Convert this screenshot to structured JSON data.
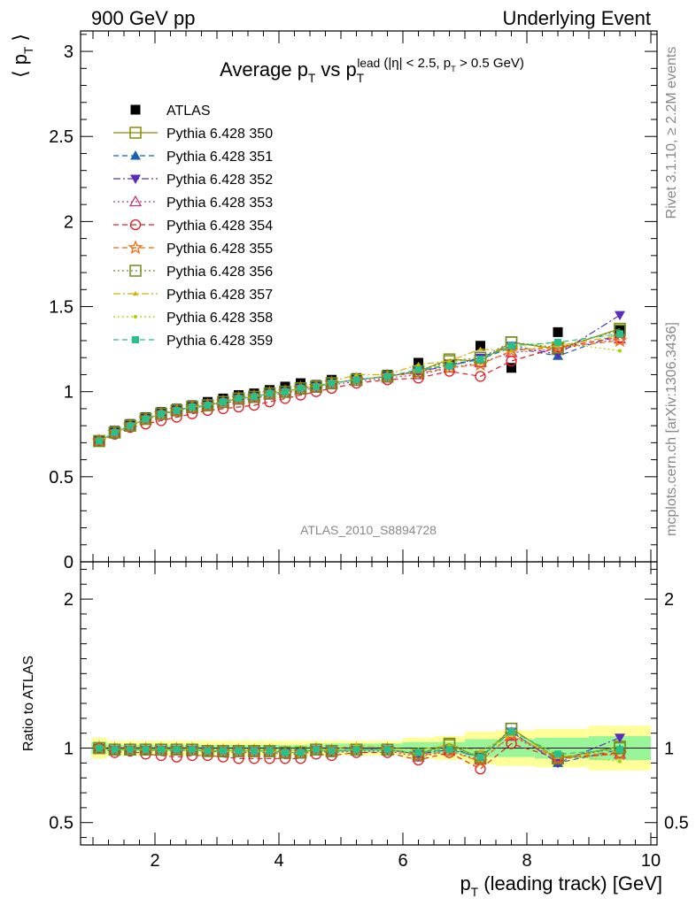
{
  "header": {
    "left": "900 GeV pp",
    "right": "Underlying Event"
  },
  "side_labels": {
    "rivet": "Rivet 3.1.10, ≥ 2.2M events",
    "mcplots": "mcplots.cern.ch [arXiv:1306.3436]"
  },
  "chart_data": [
    {
      "type": "scatter",
      "panel": "main",
      "title": "Average p_T vs p_T^lead (|η| < 2.5, p_T > 0.5 GeV)",
      "ylabel": "⟨ p_T ⟩",
      "xlabel": "",
      "watermark": "ATLAS_2010_S8894728",
      "xlim": [
        0.8,
        10.1
      ],
      "ylim": [
        0,
        3.12
      ],
      "yticks": [
        0,
        0.5,
        1,
        1.5,
        2,
        2.5,
        3
      ],
      "ytick_labels": [
        "0",
        "0.5",
        "1",
        "1.5",
        "2",
        "2.5",
        "3"
      ],
      "legend_position": "top-left",
      "x": [
        1.1,
        1.35,
        1.6,
        1.85,
        2.1,
        2.35,
        2.6,
        2.85,
        3.1,
        3.35,
        3.6,
        3.85,
        4.1,
        4.35,
        4.6,
        4.85,
        5.25,
        5.75,
        6.25,
        6.75,
        7.25,
        7.75,
        8.5,
        9.5
      ],
      "series": [
        {
          "name": "ATLAS",
          "color": "#000000",
          "marker": "square-filled",
          "line": "none",
          "values": [
            0.71,
            0.77,
            0.81,
            0.85,
            0.88,
            0.9,
            0.92,
            0.94,
            0.96,
            0.98,
            0.99,
            1.01,
            1.03,
            1.05,
            1.04,
            1.07,
            1.08,
            1.1,
            1.17,
            1.16,
            1.27,
            1.14,
            1.35,
            1.36
          ]
        },
        {
          "name": "Pythia 6.428 350",
          "color": "#8b8b00",
          "marker": "square-open",
          "line": "solid",
          "values": [
            0.71,
            0.76,
            0.8,
            0.84,
            0.87,
            0.89,
            0.91,
            0.92,
            0.94,
            0.96,
            0.97,
            0.99,
            1.0,
            1.02,
            1.03,
            1.05,
            1.07,
            1.09,
            1.12,
            1.19,
            1.18,
            1.29,
            1.25,
            1.37
          ]
        },
        {
          "name": "Pythia 6.428 351",
          "color": "#1a5fb4",
          "marker": "triangle-up-filled",
          "line": "dashed",
          "values": [
            0.71,
            0.76,
            0.8,
            0.84,
            0.87,
            0.89,
            0.91,
            0.92,
            0.94,
            0.96,
            0.97,
            0.99,
            1.0,
            1.02,
            1.03,
            1.05,
            1.07,
            1.09,
            1.12,
            1.16,
            1.19,
            1.26,
            1.21,
            1.34
          ]
        },
        {
          "name": "Pythia 6.428 352",
          "color": "#5b2bc0",
          "marker": "triangle-down-filled",
          "line": "dashdot",
          "values": [
            0.71,
            0.76,
            0.8,
            0.84,
            0.87,
            0.89,
            0.91,
            0.92,
            0.94,
            0.96,
            0.97,
            0.99,
            1.0,
            1.02,
            1.03,
            1.05,
            1.07,
            1.09,
            1.12,
            1.15,
            1.2,
            1.27,
            1.22,
            1.45
          ]
        },
        {
          "name": "Pythia 6.428 353",
          "color": "#c0367a",
          "marker": "triangle-up-open",
          "line": "dotted",
          "values": [
            0.71,
            0.76,
            0.8,
            0.84,
            0.86,
            0.89,
            0.9,
            0.92,
            0.93,
            0.95,
            0.96,
            0.98,
            0.99,
            1.01,
            1.02,
            1.04,
            1.06,
            1.08,
            1.1,
            1.14,
            1.17,
            1.23,
            1.25,
            1.31
          ]
        },
        {
          "name": "Pythia 6.428 354",
          "color": "#e01b24",
          "marker": "circle-open",
          "line": "dashed",
          "values": [
            0.71,
            0.75,
            0.79,
            0.81,
            0.83,
            0.85,
            0.87,
            0.89,
            0.9,
            0.91,
            0.92,
            0.94,
            0.96,
            0.98,
            1.0,
            1.02,
            1.05,
            1.07,
            1.08,
            1.12,
            1.09,
            1.18,
            1.26,
            1.32
          ]
        },
        {
          "name": "Pythia 6.428 355",
          "color": "#f66a0a",
          "marker": "star-open",
          "line": "dashed",
          "values": [
            0.71,
            0.76,
            0.8,
            0.84,
            0.87,
            0.89,
            0.91,
            0.92,
            0.94,
            0.96,
            0.97,
            0.99,
            1.0,
            1.02,
            1.03,
            1.05,
            1.07,
            1.09,
            1.11,
            1.14,
            1.16,
            1.24,
            1.26,
            1.3
          ]
        },
        {
          "name": "Pythia 6.428 356",
          "color": "#6b8e23",
          "marker": "square-open",
          "line": "dotted",
          "values": [
            0.71,
            0.76,
            0.8,
            0.84,
            0.87,
            0.89,
            0.91,
            0.92,
            0.94,
            0.96,
            0.97,
            0.99,
            1.0,
            1.02,
            1.03,
            1.05,
            1.07,
            1.09,
            1.12,
            1.18,
            1.2,
            1.29,
            1.26,
            1.36
          ]
        },
        {
          "name": "Pythia 6.428 357",
          "color": "#d4b000",
          "marker": "tri-small",
          "line": "dashdot",
          "values": [
            0.71,
            0.76,
            0.8,
            0.84,
            0.87,
            0.89,
            0.91,
            0.92,
            0.94,
            0.96,
            0.97,
            0.99,
            1.0,
            1.02,
            1.03,
            1.06,
            1.1,
            1.1,
            1.16,
            1.18,
            1.25,
            1.24,
            1.27,
            1.33
          ]
        },
        {
          "name": "Pythia 6.428 358",
          "color": "#a3d300",
          "marker": "dot-small",
          "line": "dotted",
          "values": [
            0.71,
            0.76,
            0.8,
            0.84,
            0.87,
            0.89,
            0.91,
            0.92,
            0.94,
            0.96,
            0.97,
            0.99,
            1.0,
            1.02,
            1.03,
            1.05,
            1.07,
            1.09,
            1.12,
            1.17,
            1.2,
            1.26,
            1.29,
            1.24
          ]
        },
        {
          "name": "Pythia 6.428 359",
          "color": "#26c28a",
          "marker": "square-small-filled",
          "line": "dashed",
          "values": [
            0.71,
            0.76,
            0.8,
            0.84,
            0.87,
            0.89,
            0.91,
            0.92,
            0.94,
            0.96,
            0.97,
            0.99,
            1.0,
            1.02,
            1.03,
            1.05,
            1.07,
            1.09,
            1.13,
            1.15,
            1.19,
            1.27,
            1.29,
            1.34
          ]
        }
      ]
    },
    {
      "type": "scatter",
      "panel": "ratio",
      "ylabel": "Ratio to ATLAS",
      "xlabel": "p_T (leading track) [GeV]",
      "xlim": [
        0.8,
        10.1
      ],
      "ylim": [
        0.35,
        2.25
      ],
      "xticks": [
        2,
        4,
        6,
        8,
        10
      ],
      "xtick_labels": [
        "2",
        "4",
        "6",
        "8",
        "10"
      ],
      "yticks": [
        0.5,
        1,
        2
      ],
      "ytick_labels": [
        "0.5",
        "1",
        "2"
      ],
      "band_stat_halfwidth": [
        0.04,
        0.02,
        0.02,
        0.02,
        0.02,
        0.02,
        0.02,
        0.02,
        0.02,
        0.02,
        0.02,
        0.02,
        0.02,
        0.02,
        0.025,
        0.03,
        0.03,
        0.03,
        0.04,
        0.04,
        0.06,
        0.06,
        0.07,
        0.08
      ],
      "band_total_halfwidth": [
        0.07,
        0.05,
        0.05,
        0.05,
        0.05,
        0.05,
        0.05,
        0.05,
        0.05,
        0.05,
        0.05,
        0.05,
        0.05,
        0.05,
        0.05,
        0.05,
        0.05,
        0.05,
        0.07,
        0.08,
        0.11,
        0.12,
        0.13,
        0.15
      ],
      "band_stat_color": "#98f598",
      "band_total_color": "#ffff99",
      "series_ratio_values": [
        [
          1.0,
          0.99,
          0.99,
          0.99,
          0.99,
          0.99,
          0.99,
          0.98,
          0.98,
          0.98,
          0.98,
          0.98,
          0.97,
          0.97,
          0.99,
          0.98,
          0.99,
          0.99,
          0.96,
          1.03,
          0.93,
          1.13,
          0.93,
          1.01
        ],
        [
          1.0,
          0.99,
          0.99,
          0.99,
          0.99,
          0.99,
          0.99,
          0.98,
          0.98,
          0.98,
          0.98,
          0.98,
          0.97,
          0.97,
          0.99,
          0.98,
          0.99,
          0.99,
          0.96,
          1.0,
          0.94,
          1.11,
          0.9,
          0.99
        ],
        [
          1.0,
          0.99,
          0.99,
          0.99,
          0.99,
          0.99,
          0.99,
          0.98,
          0.98,
          0.98,
          0.98,
          0.98,
          0.97,
          0.97,
          0.99,
          0.98,
          0.99,
          0.99,
          0.96,
          0.99,
          0.94,
          1.11,
          0.9,
          1.07
        ],
        [
          1.0,
          0.99,
          0.99,
          0.99,
          0.98,
          0.99,
          0.98,
          0.98,
          0.97,
          0.97,
          0.97,
          0.97,
          0.96,
          0.96,
          0.98,
          0.97,
          0.98,
          0.98,
          0.94,
          0.98,
          0.92,
          1.08,
          0.93,
          0.96
        ],
        [
          1.0,
          0.97,
          0.98,
          0.96,
          0.95,
          0.94,
          0.95,
          0.95,
          0.94,
          0.93,
          0.93,
          0.93,
          0.93,
          0.93,
          0.96,
          0.95,
          0.97,
          0.97,
          0.92,
          0.97,
          0.86,
          1.03,
          0.93,
          0.97
        ],
        [
          1.0,
          0.99,
          0.99,
          0.99,
          0.99,
          0.99,
          0.99,
          0.98,
          0.98,
          0.98,
          0.98,
          0.98,
          0.97,
          0.97,
          0.99,
          0.98,
          0.99,
          0.99,
          0.95,
          0.98,
          0.91,
          1.09,
          0.93,
          0.96
        ],
        [
          1.0,
          0.99,
          0.99,
          0.99,
          0.99,
          0.99,
          0.99,
          0.98,
          0.98,
          0.98,
          0.98,
          0.98,
          0.97,
          0.97,
          0.99,
          0.98,
          0.99,
          0.99,
          0.96,
          1.02,
          0.94,
          1.13,
          0.93,
          1.0
        ],
        [
          1.0,
          0.99,
          0.99,
          0.99,
          0.99,
          0.99,
          0.99,
          0.98,
          0.98,
          0.98,
          0.98,
          0.98,
          0.97,
          0.97,
          0.99,
          0.99,
          1.02,
          1.0,
          0.99,
          1.02,
          0.98,
          1.09,
          0.94,
          0.98
        ],
        [
          1.0,
          0.99,
          0.99,
          0.99,
          0.99,
          0.99,
          0.99,
          0.98,
          0.98,
          0.98,
          0.98,
          0.98,
          0.97,
          0.97,
          0.99,
          0.98,
          0.99,
          0.99,
          0.96,
          1.01,
          0.94,
          1.11,
          0.96,
          0.91
        ],
        [
          1.0,
          0.99,
          0.99,
          0.99,
          0.99,
          0.99,
          0.99,
          0.98,
          0.98,
          0.98,
          0.98,
          0.98,
          0.97,
          0.97,
          0.99,
          0.98,
          0.99,
          0.99,
          0.97,
          0.99,
          0.94,
          1.11,
          0.96,
          0.99
        ]
      ]
    }
  ]
}
